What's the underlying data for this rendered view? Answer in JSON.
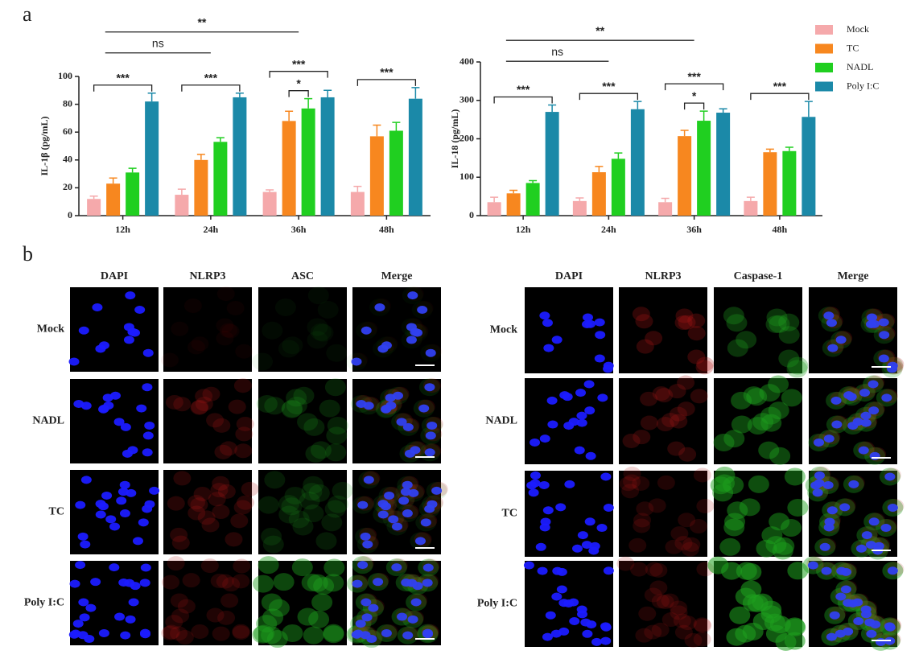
{
  "panel_labels": [
    "a",
    "b"
  ],
  "chart_data": [
    {
      "type": "bar",
      "y_label": "IL-1β (pg/mL)",
      "categories": [
        "12h",
        "24h",
        "36h",
        "48h"
      ],
      "series": [
        {
          "name": "Mock",
          "color": "#f5a9ab",
          "values": [
            12,
            15,
            17,
            17
          ],
          "errors": [
            2,
            4,
            1.5,
            4
          ]
        },
        {
          "name": "TC",
          "color": "#f7871f",
          "values": [
            23,
            40,
            68,
            57
          ],
          "errors": [
            4,
            4,
            7,
            8
          ]
        },
        {
          "name": "NADL",
          "color": "#20cf20",
          "values": [
            31,
            53,
            77,
            61
          ],
          "errors": [
            3,
            3,
            7,
            6
          ]
        },
        {
          "name": "Poly I:C",
          "color": "#1b89a8",
          "values": [
            82,
            85,
            85,
            84
          ],
          "errors": [
            6,
            3,
            5,
            8
          ]
        }
      ],
      "ylim": [
        0,
        100
      ],
      "yticks": [
        0,
        20,
        40,
        60,
        80,
        100
      ],
      "legend": "right",
      "annotations": [
        {
          "text": "***",
          "category": "12h",
          "between": [
            "Mock",
            "Poly I:C"
          ]
        },
        {
          "text": "***",
          "category": "24h",
          "between": [
            "Mock",
            "Poly I:C"
          ]
        },
        {
          "text": "*",
          "category": "36h",
          "between": [
            "TC",
            "NADL"
          ]
        },
        {
          "text": "***",
          "category": "36h",
          "between": [
            "Mock",
            "Poly I:C"
          ]
        },
        {
          "text": "***",
          "category": "48h",
          "between": [
            "Mock",
            "Poly I:C"
          ]
        },
        {
          "text": "ns",
          "across": [
            "12h",
            "24h"
          ]
        },
        {
          "text": "**",
          "across": [
            "12h",
            "36h"
          ]
        }
      ]
    },
    {
      "type": "bar",
      "y_label": "IL-18 (pg/mL)",
      "categories": [
        "12h",
        "24h",
        "36h",
        "48h"
      ],
      "series": [
        {
          "name": "Mock",
          "color": "#f5a9ab",
          "values": [
            35,
            38,
            35,
            38
          ],
          "errors": [
            13,
            8,
            10,
            10
          ]
        },
        {
          "name": "TC",
          "color": "#f7871f",
          "values": [
            58,
            113,
            207,
            165
          ],
          "errors": [
            8,
            15,
            15,
            8
          ]
        },
        {
          "name": "NADL",
          "color": "#20cf20",
          "values": [
            85,
            148,
            247,
            168
          ],
          "errors": [
            6,
            15,
            25,
            10
          ]
        },
        {
          "name": "Poly I:C",
          "color": "#1b89a8",
          "values": [
            270,
            277,
            268,
            257
          ],
          "errors": [
            18,
            20,
            10,
            40
          ]
        }
      ],
      "ylim": [
        0,
        400
      ],
      "yticks": [
        0,
        100,
        200,
        300,
        400
      ],
      "annotations": [
        {
          "text": "***",
          "category": "12h",
          "between": [
            "Mock",
            "Poly I:C"
          ]
        },
        {
          "text": "***",
          "category": "24h",
          "between": [
            "Mock",
            "Poly I:C"
          ]
        },
        {
          "text": "*",
          "category": "36h",
          "between": [
            "TC",
            "NADL"
          ]
        },
        {
          "text": "***",
          "category": "36h",
          "between": [
            "Mock",
            "Poly I:C"
          ]
        },
        {
          "text": "***",
          "category": "48h",
          "between": [
            "Mock",
            "Poly I:C"
          ]
        },
        {
          "text": "ns",
          "across": [
            "12h",
            "24h"
          ]
        },
        {
          "text": "**",
          "across": [
            "12h",
            "36h"
          ]
        }
      ]
    }
  ],
  "microscopy": [
    {
      "columns": [
        "DAPI",
        "NLRP3",
        "ASC",
        "Merge"
      ],
      "rows": [
        "Mock",
        "NADL",
        "TC",
        "Poly I:C"
      ]
    },
    {
      "columns": [
        "DAPI",
        "NLRP3",
        "Caspase-1",
        "Merge"
      ],
      "rows": [
        "Mock",
        "NADL",
        "TC",
        "Poly I:C"
      ]
    }
  ]
}
